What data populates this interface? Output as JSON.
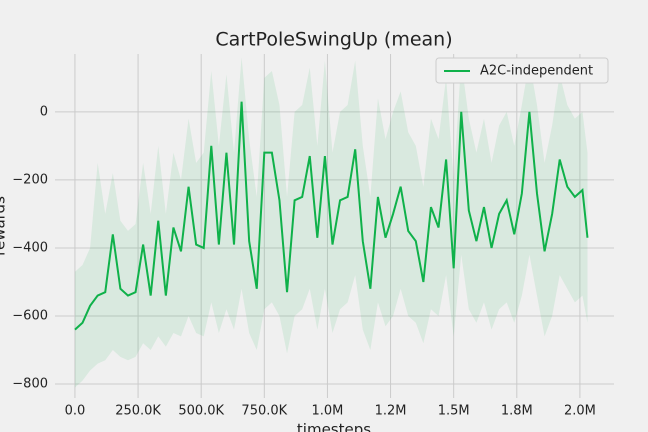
{
  "chart_data": {
    "type": "line",
    "title": "CartPoleSwingUp (mean)",
    "xlabel": "timesteps",
    "ylabel": "rewards",
    "x": [
      0,
      30000,
      60000,
      90000,
      120000,
      150000,
      180000,
      210000,
      240000,
      270000,
      300000,
      330000,
      360000,
      390000,
      420000,
      450000,
      480000,
      510000,
      540000,
      570000,
      600000,
      630000,
      660000,
      690000,
      720000,
      750000,
      780000,
      810000,
      840000,
      870000,
      900000,
      930000,
      960000,
      990000,
      1020000,
      1050000,
      1080000,
      1110000,
      1140000,
      1170000,
      1200000,
      1230000,
      1260000,
      1290000,
      1320000,
      1350000,
      1380000,
      1410000,
      1440000,
      1470000,
      1500000,
      1530000,
      1560000,
      1590000,
      1620000,
      1650000,
      1680000,
      1710000,
      1740000,
      1770000,
      1800000,
      1830000,
      1860000,
      1890000,
      1920000,
      1950000,
      1980000,
      2010000,
      2030000
    ],
    "series": [
      {
        "name": "A2C-independent",
        "color": "#0fb14a",
        "values": [
          -640,
          -620,
          -570,
          -540,
          -530,
          -360,
          -520,
          -540,
          -530,
          -390,
          -540,
          -320,
          -540,
          -340,
          -410,
          -220,
          -390,
          -400,
          -100,
          -390,
          -120,
          -390,
          30,
          -380,
          -520,
          -120,
          -120,
          -260,
          -530,
          -260,
          -250,
          -130,
          -370,
          -130,
          -390,
          -260,
          -250,
          -110,
          -380,
          -520,
          -250,
          -370,
          -300,
          -220,
          -350,
          -380,
          -500,
          -280,
          -340,
          -140,
          -460,
          0,
          -290,
          -380,
          -280,
          -400,
          -300,
          -260,
          -360,
          -240,
          0,
          -240,
          -410,
          -300,
          -140,
          -220,
          -250,
          -230,
          -370
        ],
        "upper": [
          -470,
          -450,
          -400,
          -150,
          -300,
          -180,
          -320,
          -350,
          -330,
          -150,
          -300,
          -100,
          -300,
          -120,
          -200,
          -20,
          -150,
          -120,
          120,
          -100,
          110,
          -120,
          160,
          -80,
          -250,
          100,
          120,
          20,
          -250,
          0,
          20,
          130,
          -100,
          150,
          -120,
          0,
          20,
          150,
          -100,
          -250,
          40,
          -80,
          0,
          60,
          -60,
          -100,
          -220,
          -20,
          -80,
          100,
          -200,
          150,
          -20,
          -120,
          -20,
          -150,
          -40,
          0,
          -100,
          20,
          150,
          20,
          -150,
          -40,
          110,
          20,
          -20,
          0,
          -120
        ],
        "lower": [
          -810,
          -790,
          -760,
          -740,
          -730,
          -700,
          -720,
          -730,
          -720,
          -680,
          -700,
          -660,
          -690,
          -650,
          -660,
          -600,
          -650,
          -660,
          -560,
          -650,
          -580,
          -640,
          -520,
          -650,
          -700,
          -580,
          -560,
          -600,
          -710,
          -600,
          -580,
          -520,
          -640,
          -520,
          -650,
          -580,
          -560,
          -480,
          -640,
          -700,
          -560,
          -630,
          -600,
          -520,
          -600,
          -620,
          -680,
          -580,
          -600,
          -480,
          -660,
          -420,
          -580,
          -620,
          -560,
          -640,
          -580,
          -560,
          -620,
          -540,
          -420,
          -540,
          -660,
          -600,
          -480,
          -520,
          -560,
          -540,
          -620
        ]
      }
    ],
    "xlim": [
      -79000,
      2135000
    ],
    "xticks": [
      {
        "value": 0,
        "label": "0.0"
      },
      {
        "value": 250000,
        "label": "250.0K"
      },
      {
        "value": 500000,
        "label": "500.0K"
      },
      {
        "value": 750000,
        "label": "750.0K"
      },
      {
        "value": 1000000,
        "label": "1.0M"
      },
      {
        "value": 1250000,
        "label": "1.2M"
      },
      {
        "value": 1500000,
        "label": "1.5M"
      },
      {
        "value": 1750000,
        "label": "1.8M"
      },
      {
        "value": 2000000,
        "label": "2.0M"
      }
    ],
    "ylim": [
      -841,
      170
    ],
    "yticks": [
      {
        "value": -800,
        "label": "−800"
      },
      {
        "value": -600,
        "label": "−600"
      },
      {
        "value": -400,
        "label": "−400"
      },
      {
        "value": -200,
        "label": "−200"
      },
      0
    ],
    "grid": true,
    "legend": "upper right"
  }
}
